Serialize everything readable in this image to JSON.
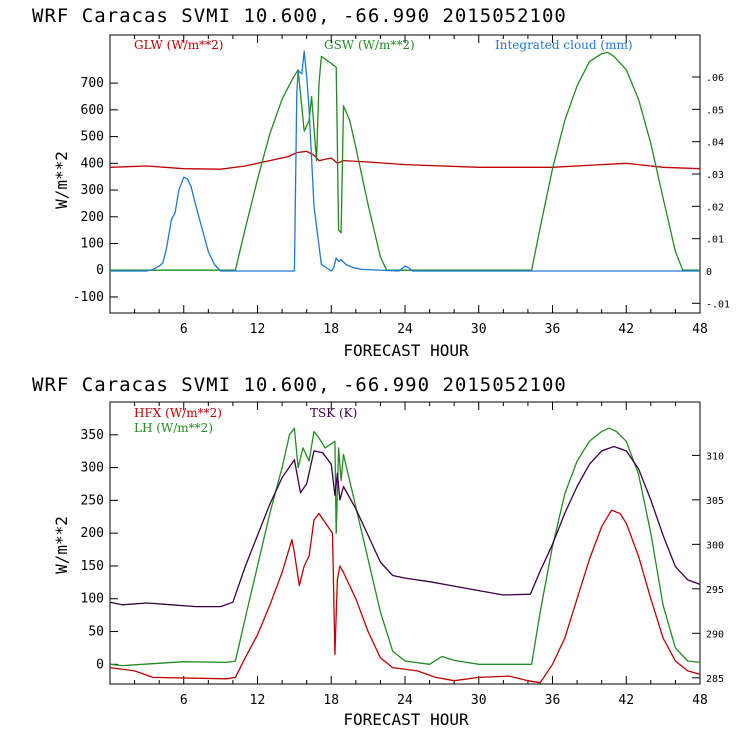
{
  "colors": {
    "red": "#c00000",
    "green": "#228b22",
    "blue": "#1e78d6",
    "purple": "#3c0046"
  },
  "chart_data": [
    {
      "type": "line",
      "title": "WRF  Caracas SVMI  10.600, -66.990  2015052100",
      "xlabel": "FORECAST HOUR",
      "ylabel": "W/m**2",
      "xlim": [
        0,
        48
      ],
      "ylim": [
        -160,
        880
      ],
      "y2lim": [
        -0.013,
        0.073
      ],
      "xticks": [
        6,
        12,
        18,
        24,
        30,
        36,
        42,
        48
      ],
      "yticks": [
        -100,
        0,
        100,
        200,
        300,
        400,
        500,
        600,
        700
      ],
      "y2ticks": [
        -0.01,
        0,
        0.01,
        0.02,
        0.03,
        0.04,
        0.05,
        0.06
      ],
      "xtick_labels": [
        "6",
        "12",
        "18",
        "24",
        "30",
        "36",
        "42",
        "48"
      ],
      "ytick_labels": [
        "-100",
        "0",
        "100",
        "200",
        "300",
        "400",
        "500",
        "600",
        "700"
      ],
      "y2tick_labels": [
        "-.01",
        "0",
        ".01",
        ".02",
        ".03",
        ".04",
        ".05",
        ".06"
      ],
      "series": [
        {
          "name": "GLW (W/m**2)",
          "color": "#c00000",
          "axis": "left",
          "x": [
            0,
            3,
            6,
            9,
            11,
            13,
            14.5,
            15.2,
            16,
            16.6,
            17,
            18,
            18.5,
            19,
            21,
            24,
            30,
            36,
            40,
            42,
            45,
            48
          ],
          "y": [
            385,
            390,
            380,
            378,
            390,
            410,
            425,
            440,
            445,
            430,
            410,
            420,
            400,
            410,
            405,
            395,
            385,
            385,
            395,
            400,
            385,
            380
          ]
        },
        {
          "name": "GSW (W/m**2)",
          "color": "#228b22",
          "axis": "left",
          "x": [
            0,
            10.2,
            11,
            12,
            13,
            14,
            14.9,
            15.3,
            15.8,
            16.2,
            16.4,
            16.8,
            17,
            17.2,
            17.8,
            18.4,
            18.6,
            18.8,
            19,
            19.5,
            20,
            21,
            22,
            22.5,
            34.3,
            35,
            36,
            37,
            38,
            39,
            40,
            40.5,
            41,
            42,
            43,
            44,
            45,
            46,
            46.6,
            48
          ],
          "y": [
            0,
            0,
            155,
            340,
            510,
            640,
            720,
            750,
            520,
            560,
            650,
            410,
            700,
            800,
            780,
            760,
            150,
            140,
            615,
            560,
            460,
            245,
            50,
            0,
            0,
            160,
            380,
            560,
            690,
            780,
            810,
            815,
            800,
            750,
            640,
            475,
            270,
            70,
            0,
            0
          ]
        },
        {
          "name": "Integrated cloud (mm)",
          "color": "#1e78d6",
          "axis": "right",
          "x": [
            0,
            3,
            3.5,
            4,
            4.3,
            4.6,
            5,
            5.3,
            5.6,
            6,
            6.3,
            6.6,
            7,
            7.5,
            8,
            8.5,
            9,
            15,
            15.2,
            15.3,
            15.6,
            15.8,
            16,
            16.2,
            16.6,
            17.2,
            18,
            18.2,
            18.4,
            18.6,
            18.8,
            19.2,
            19.8,
            20.5,
            23.5,
            24,
            24.3,
            24.6,
            48
          ],
          "y": [
            0,
            0,
            0.0005,
            0.0015,
            0.0025,
            0.007,
            0.016,
            0.018,
            0.025,
            0.029,
            0.0285,
            0.026,
            0.02,
            0.013,
            0.006,
            0.002,
            0,
            0,
            0.055,
            0.062,
            0.061,
            0.068,
            0.06,
            0.05,
            0.02,
            0.002,
            0,
            0.001,
            0.004,
            0.003,
            0.0035,
            0.002,
            0.001,
            0.0005,
            0,
            0.0015,
            0.001,
            0,
            0
          ]
        }
      ]
    },
    {
      "type": "line",
      "title": "WRF  Caracas SVMI  10.600, -66.990  2015052100",
      "xlabel": "FORECAST HOUR",
      "ylabel": "W/m**2",
      "xlim": [
        0,
        48
      ],
      "ylim": [
        -30,
        400
      ],
      "y2lim": [
        284.3,
        316
      ],
      "xticks": [
        6,
        12,
        18,
        24,
        30,
        36,
        42,
        48
      ],
      "yticks": [
        0,
        50,
        100,
        150,
        200,
        250,
        300,
        350
      ],
      "y2ticks": [
        285,
        290,
        295,
        300,
        305,
        310
      ],
      "xtick_labels": [
        "6",
        "12",
        "18",
        "24",
        "30",
        "36",
        "42",
        "48"
      ],
      "ytick_labels": [
        "0",
        "50",
        "100",
        "150",
        "200",
        "250",
        "300",
        "350"
      ],
      "y2tick_labels": [
        "285",
        "290",
        "295",
        "300",
        "305",
        "310"
      ],
      "series": [
        {
          "name": "HFX (W/m**2)",
          "color": "#c00000",
          "axis": "left",
          "x": [
            0,
            2,
            3.5,
            9.5,
            10.2,
            11,
            12,
            13,
            14,
            14.8,
            15,
            15.4,
            15.8,
            16.2,
            16.6,
            17,
            18.1,
            18.3,
            18.5,
            18.7,
            19,
            20,
            21,
            22,
            23,
            25,
            26.5,
            28,
            30,
            32.5,
            34,
            35,
            36,
            37,
            38,
            39,
            40,
            40.8,
            41.5,
            42,
            43,
            44,
            45,
            46,
            47,
            48
          ],
          "y": [
            -5,
            -10,
            -20,
            -22,
            -20,
            10,
            45,
            90,
            140,
            190,
            170,
            120,
            150,
            165,
            220,
            230,
            200,
            15,
            130,
            150,
            140,
            100,
            50,
            10,
            -5,
            -10,
            -20,
            -25,
            -20,
            -18,
            -25,
            -28,
            0,
            40,
            100,
            160,
            210,
            235,
            230,
            215,
            165,
            100,
            40,
            5,
            -10,
            -15
          ]
        },
        {
          "name": "LH (W/m**2)",
          "color": "#228b22",
          "axis": "left",
          "x": [
            0,
            1,
            6,
            9.5,
            10.2,
            11,
            12,
            13,
            14,
            14.6,
            15,
            15.3,
            15.7,
            16.2,
            16.6,
            17,
            17.5,
            18.3,
            18.4,
            18.6,
            18.8,
            19,
            20,
            21,
            22,
            23,
            24,
            26,
            27,
            28,
            30,
            33,
            34.3,
            35,
            36,
            37,
            38,
            39,
            40,
            40.6,
            41.2,
            42,
            43,
            44,
            45,
            46,
            47,
            48
          ],
          "y": [
            0,
            -2,
            4,
            3,
            5,
            70,
            150,
            230,
            300,
            350,
            360,
            300,
            330,
            310,
            355,
            345,
            330,
            340,
            200,
            330,
            280,
            320,
            240,
            160,
            80,
            20,
            5,
            0,
            12,
            6,
            0,
            0,
            0,
            80,
            180,
            260,
            310,
            340,
            355,
            360,
            355,
            340,
            290,
            200,
            90,
            25,
            5,
            3
          ]
        },
        {
          "name": "TSK (K)",
          "color": "#3c0046",
          "axis": "right",
          "x": [
            0,
            1,
            3,
            5,
            7,
            9,
            10,
            11,
            12,
            13,
            14,
            15,
            15.5,
            16,
            16.6,
            17.3,
            18,
            18.3,
            18.5,
            18.7,
            19,
            20,
            21,
            22,
            23,
            24,
            26,
            28,
            30,
            32,
            34.2,
            35,
            36,
            37,
            38,
            39,
            40,
            41,
            42,
            43,
            44,
            45,
            46,
            47,
            48
          ],
          "y": [
            293.5,
            293.2,
            293.4,
            293.2,
            293.0,
            293.0,
            293.5,
            297.5,
            301.0,
            304.5,
            307.5,
            309.5,
            305.8,
            306.8,
            310.5,
            310.3,
            309.0,
            305.5,
            308.0,
            305.0,
            306.5,
            304.0,
            301.0,
            298.0,
            296.5,
            296.2,
            295.8,
            295.3,
            294.8,
            294.3,
            294.4,
            297.0,
            300.0,
            303.5,
            306.5,
            309.0,
            310.5,
            311.0,
            310.5,
            308.5,
            305.0,
            301.0,
            297.5,
            296.0,
            295.5
          ]
        }
      ]
    }
  ]
}
